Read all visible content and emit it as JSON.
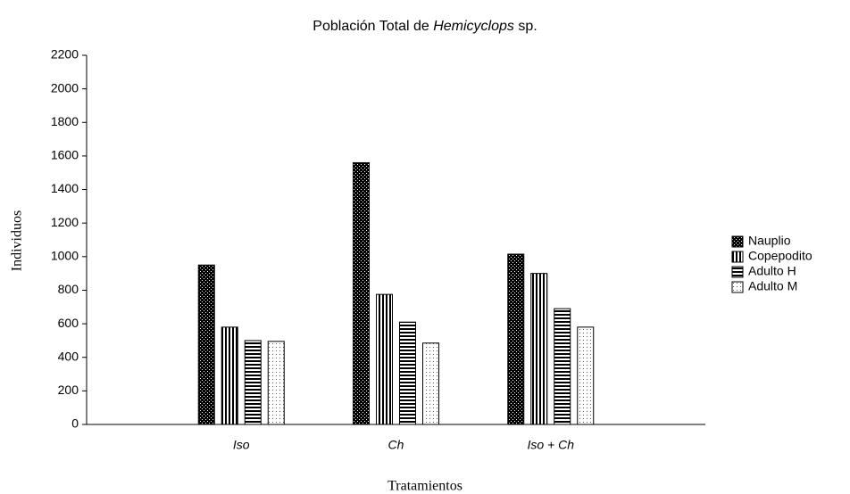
{
  "chart_data": {
    "type": "bar",
    "title": [
      "Población Total de ",
      "Hemicyclops",
      " sp."
    ],
    "x_label": "Tratamientos",
    "y_label": "Individuos",
    "categories": [
      "Iso",
      "Ch",
      "Iso + Ch"
    ],
    "series": [
      {
        "name": "Nauplio",
        "values": [
          950,
          1560,
          1015
        ]
      },
      {
        "name": "Copepodito",
        "values": [
          580,
          775,
          900
        ]
      },
      {
        "name": "Adulto H",
        "values": [
          500,
          610,
          690
        ]
      },
      {
        "name": "Adulto M",
        "values": [
          495,
          485,
          580
        ]
      }
    ],
    "ylim": [
      0,
      2200
    ],
    "yticks": [
      0,
      200,
      400,
      600,
      800,
      1000,
      1200,
      1400,
      1600,
      1800,
      2000,
      2200
    ],
    "grid": false,
    "legend": "right"
  }
}
